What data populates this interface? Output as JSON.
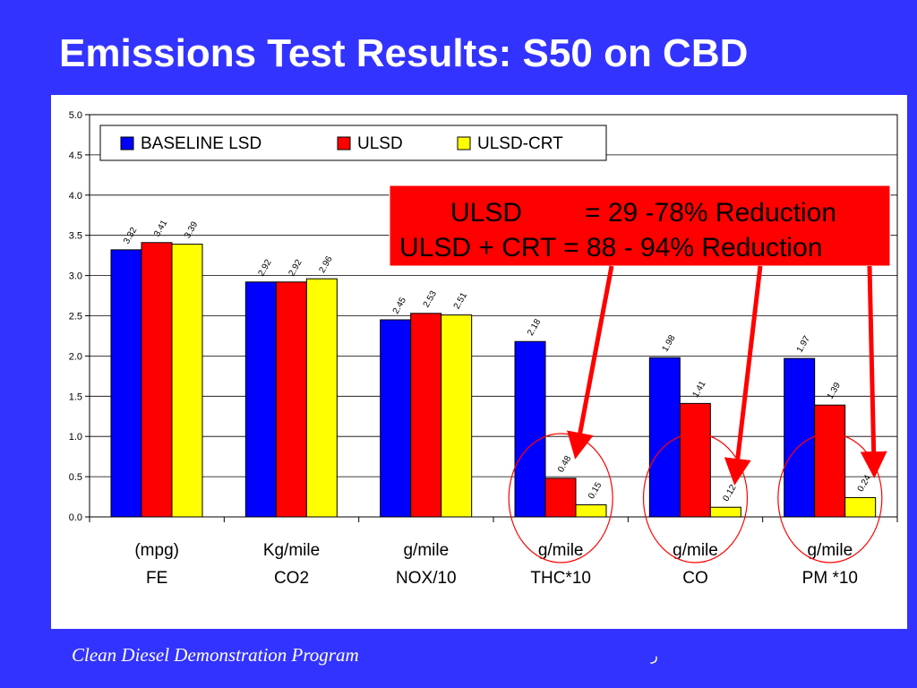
{
  "slide": {
    "title": "Emissions Test Results: S50 on CBD",
    "footer": "Clean Diesel Demonstration Program",
    "footer_mark": "ر"
  },
  "chart_data": {
    "type": "bar",
    "ylim": [
      0,
      5.0
    ],
    "yticks": [
      "0.0",
      "0.5",
      "1.0",
      "1.5",
      "2.0",
      "2.5",
      "3.0",
      "3.5",
      "4.0",
      "4.5",
      "5.0"
    ],
    "categories": [
      {
        "line1": "(mpg)",
        "line2": "FE"
      },
      {
        "line1": "Kg/mile",
        "line2": "CO2"
      },
      {
        "line1": "g/mile",
        "line2": "NOX/10"
      },
      {
        "line1": "g/mile",
        "line2": "THC*10"
      },
      {
        "line1": "g/mile",
        "line2": "CO"
      },
      {
        "line1": "g/mile",
        "line2": "PM *10"
      }
    ],
    "series": [
      {
        "name": "BASELINE LSD",
        "color": "#0000ff",
        "values": [
          3.32,
          2.92,
          2.45,
          2.18,
          1.98,
          1.97
        ]
      },
      {
        "name": "ULSD",
        "color": "#ff0000",
        "values": [
          3.41,
          2.92,
          2.53,
          0.48,
          1.41,
          1.39
        ]
      },
      {
        "name": "ULSD-CRT",
        "color": "#ffff00",
        "values": [
          3.39,
          2.96,
          2.51,
          0.15,
          0.12,
          0.24
        ]
      }
    ],
    "legend_position": "top-left",
    "annotation": {
      "line1_left": "ULSD",
      "line1_right": "= 29 -78% Reduction",
      "line2": "ULSD + CRT = 88 - 94% Reduction",
      "box_color": "#ff0000",
      "text_color": "#000000"
    },
    "highlighted_categories": [
      "THC*10",
      "CO",
      "PM *10"
    ]
  }
}
